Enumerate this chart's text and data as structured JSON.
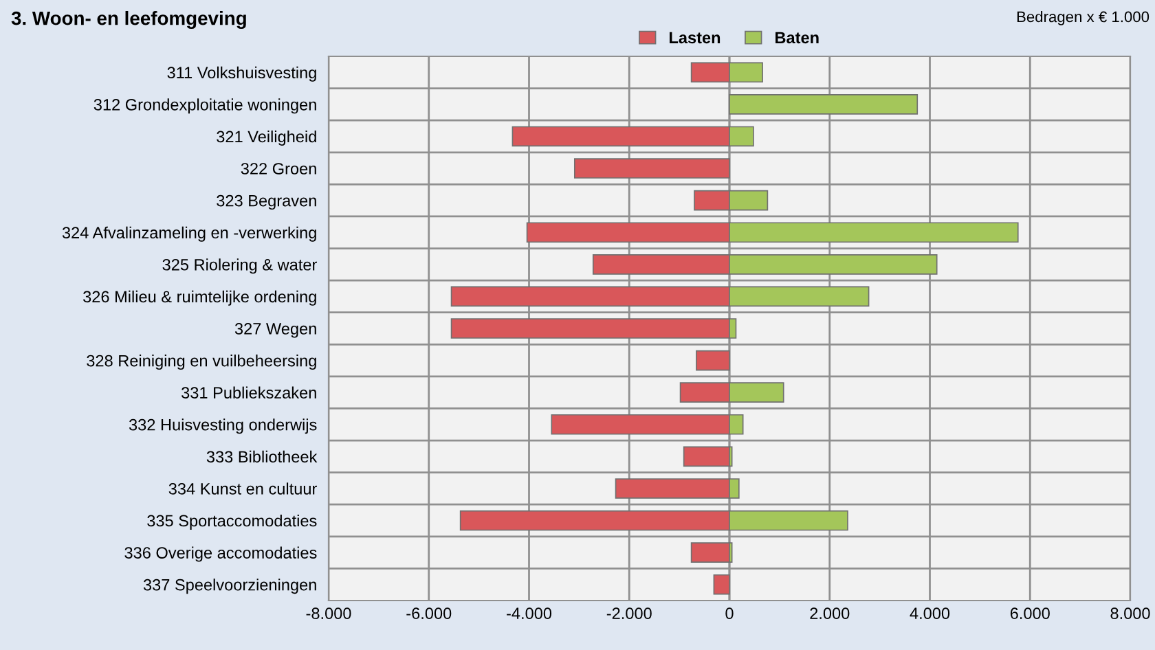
{
  "chart_data": {
    "type": "bar",
    "orientation": "horizontal",
    "stacked": true,
    "title": "3. Woon- en leefomgeving",
    "annotations": [
      "Bedragen x € 1.000"
    ],
    "categories": [
      "311 Volkshuisvesting",
      "312 Grondexploitatie woningen",
      "321 Veiligheid",
      "322 Groen",
      "323 Begraven",
      "324 Afvalinzameling en -verwerking",
      "325 Riolering & water",
      "326 Milieu & ruimtelijke ordening",
      "327 Wegen",
      "328 Reiniging en vuilbeheersing",
      "331 Publiekszaken",
      "332 Huisvesting onderwijs",
      "333 Bibliotheek",
      "334 Kunst en cultuur",
      "335 Sportaccomodaties",
      "336 Overige accomodaties",
      "337 Speelvoorzieningen"
    ],
    "series": [
      {
        "name": "Lasten",
        "color": "#d9575a",
        "values": [
          -760,
          0,
          -4330,
          -3090,
          -700,
          -4040,
          -2720,
          -5550,
          -5550,
          -660,
          -980,
          -3550,
          -910,
          -2270,
          -5370,
          -760,
          -310
        ]
      },
      {
        "name": "Baten",
        "color": "#a4c65a",
        "values": [
          660,
          3750,
          480,
          0,
          760,
          5760,
          4140,
          2780,
          130,
          0,
          1080,
          270,
          50,
          190,
          2360,
          50,
          0
        ]
      }
    ],
    "xlim": [
      -8000,
      8000
    ],
    "xticks": [
      {
        "value": -8000,
        "label": "-8.000"
      },
      {
        "value": -6000,
        "label": "-6.000"
      },
      {
        "value": -4000,
        "label": "-4.000"
      },
      {
        "value": -2000,
        "label": "-2.000"
      },
      0,
      {
        "value": 2000,
        "label": "2.000"
      },
      {
        "value": 4000,
        "label": "4.000"
      },
      {
        "value": 6000,
        "label": "6.000"
      },
      {
        "value": 8000,
        "label": "8.000"
      }
    ],
    "grid": true,
    "legend": "top"
  }
}
